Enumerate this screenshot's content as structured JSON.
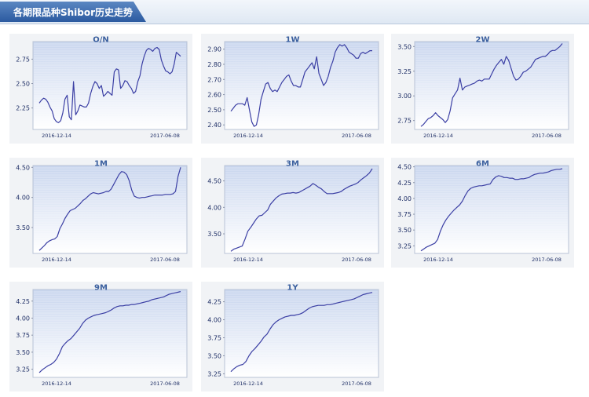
{
  "header": {
    "title": "各期限品种Shibor历史走势"
  },
  "chart_data": [
    {
      "type": "line",
      "title": "O/N",
      "ylim": [
        2.03,
        2.93
      ],
      "yticks": [
        2.25,
        2.5,
        2.75
      ],
      "ytick_labels": [
        "2.25",
        "2.50",
        "2.75"
      ],
      "x_labels": [
        "2016-12-14",
        "2017-06-08"
      ],
      "values": [
        2.3,
        2.33,
        2.35,
        2.34,
        2.31,
        2.26,
        2.22,
        2.14,
        2.11,
        2.1,
        2.12,
        2.2,
        2.34,
        2.38,
        2.16,
        2.13,
        2.52,
        2.18,
        2.22,
        2.28,
        2.27,
        2.26,
        2.26,
        2.3,
        2.4,
        2.47,
        2.52,
        2.5,
        2.45,
        2.48,
        2.37,
        2.39,
        2.42,
        2.4,
        2.38,
        2.62,
        2.65,
        2.64,
        2.45,
        2.48,
        2.53,
        2.52,
        2.48,
        2.45,
        2.4,
        2.42,
        2.52,
        2.58,
        2.7,
        2.78,
        2.84,
        2.86,
        2.85,
        2.83,
        2.86,
        2.87,
        2.85,
        2.74,
        2.68,
        2.63,
        2.62,
        2.6,
        2.62,
        2.7,
        2.82,
        2.8,
        2.78
      ]
    },
    {
      "type": "line",
      "title": "1W",
      "ylim": [
        2.37,
        2.95
      ],
      "yticks": [
        2.4,
        2.5,
        2.6,
        2.7,
        2.8,
        2.9
      ],
      "ytick_labels": [
        "2.40",
        "2.50",
        "2.60",
        "2.70",
        "2.80",
        "2.90"
      ],
      "x_labels": [
        "2016-12-14",
        "2017-06-08"
      ],
      "values": [
        2.49,
        2.51,
        2.53,
        2.54,
        2.54,
        2.54,
        2.53,
        2.58,
        2.5,
        2.42,
        2.39,
        2.4,
        2.47,
        2.57,
        2.62,
        2.67,
        2.68,
        2.64,
        2.62,
        2.63,
        2.62,
        2.65,
        2.68,
        2.7,
        2.72,
        2.73,
        2.69,
        2.66,
        2.66,
        2.65,
        2.65,
        2.7,
        2.75,
        2.77,
        2.79,
        2.81,
        2.77,
        2.85,
        2.74,
        2.7,
        2.66,
        2.68,
        2.72,
        2.78,
        2.82,
        2.88,
        2.91,
        2.93,
        2.92,
        2.93,
        2.91,
        2.88,
        2.87,
        2.86,
        2.84,
        2.84,
        2.87,
        2.88,
        2.87,
        2.88,
        2.89,
        2.89
      ]
    },
    {
      "type": "line",
      "title": "2W",
      "ylim": [
        2.66,
        3.55
      ],
      "yticks": [
        2.75,
        3.0,
        3.25,
        3.5
      ],
      "ytick_labels": [
        "2.75",
        "3.00",
        "3.25",
        "3.50"
      ],
      "x_labels": [
        "2016-12-14",
        "2017-06-08"
      ],
      "values": [
        2.69,
        2.71,
        2.74,
        2.77,
        2.78,
        2.8,
        2.83,
        2.8,
        2.78,
        2.76,
        2.73,
        2.76,
        2.85,
        2.98,
        3.02,
        3.06,
        3.18,
        3.06,
        3.09,
        3.1,
        3.11,
        3.12,
        3.13,
        3.15,
        3.16,
        3.15,
        3.17,
        3.17,
        3.17,
        3.22,
        3.27,
        3.31,
        3.34,
        3.37,
        3.32,
        3.4,
        3.36,
        3.28,
        3.2,
        3.16,
        3.17,
        3.2,
        3.24,
        3.25,
        3.27,
        3.29,
        3.33,
        3.37,
        3.38,
        3.39,
        3.4,
        3.4,
        3.42,
        3.45,
        3.46,
        3.46,
        3.48,
        3.5,
        3.53
      ]
    },
    {
      "type": "line",
      "title": "1M",
      "ylim": [
        3.07,
        4.53
      ],
      "yticks": [
        3.5,
        4.0,
        4.5
      ],
      "ytick_labels": [
        "3.50",
        "4.00",
        "4.50"
      ],
      "x_labels": [
        "2016-12-14",
        "2017-06-08"
      ],
      "values": [
        3.12,
        3.16,
        3.2,
        3.25,
        3.28,
        3.3,
        3.31,
        3.35,
        3.48,
        3.56,
        3.65,
        3.72,
        3.78,
        3.8,
        3.82,
        3.86,
        3.9,
        3.95,
        3.98,
        4.02,
        4.06,
        4.08,
        4.07,
        4.06,
        4.07,
        4.08,
        4.1,
        4.1,
        4.14,
        4.22,
        4.3,
        4.38,
        4.43,
        4.42,
        4.38,
        4.28,
        4.12,
        4.02,
        4.0,
        3.99,
        4.0,
        4.0,
        4.01,
        4.02,
        4.03,
        4.04,
        4.04,
        4.04,
        4.04,
        4.05,
        4.05,
        4.05,
        4.06,
        4.1,
        4.35,
        4.5
      ]
    },
    {
      "type": "line",
      "title": "3M",
      "ylim": [
        3.13,
        4.79
      ],
      "yticks": [
        3.5,
        4.0,
        4.5
      ],
      "ytick_labels": [
        "3.50",
        "4.00",
        "4.50"
      ],
      "x_labels": [
        "2016-12-14",
        "2017-06-08"
      ],
      "values": [
        3.17,
        3.21,
        3.23,
        3.25,
        3.27,
        3.4,
        3.55,
        3.62,
        3.7,
        3.78,
        3.84,
        3.85,
        3.9,
        3.95,
        4.06,
        4.12,
        4.18,
        4.22,
        4.25,
        4.26,
        4.27,
        4.27,
        4.28,
        4.27,
        4.28,
        4.31,
        4.34,
        4.37,
        4.4,
        4.45,
        4.42,
        4.38,
        4.35,
        4.3,
        4.26,
        4.26,
        4.26,
        4.27,
        4.28,
        4.3,
        4.34,
        4.37,
        4.4,
        4.42,
        4.44,
        4.47,
        4.52,
        4.56,
        4.6,
        4.65,
        4.73
      ]
    },
    {
      "type": "line",
      "title": "6M",
      "ylim": [
        3.13,
        4.52
      ],
      "yticks": [
        3.25,
        3.5,
        3.75,
        4.0,
        4.25,
        4.5
      ],
      "ytick_labels": [
        "3.25",
        "3.50",
        "3.75",
        "4.00",
        "4.25",
        "4.50"
      ],
      "x_labels": [
        "2016-12-14",
        "2017-06-08"
      ],
      "values": [
        3.17,
        3.2,
        3.23,
        3.25,
        3.27,
        3.29,
        3.35,
        3.48,
        3.58,
        3.66,
        3.72,
        3.77,
        3.82,
        3.86,
        3.9,
        3.96,
        4.05,
        4.12,
        4.16,
        4.18,
        4.19,
        4.2,
        4.2,
        4.21,
        4.22,
        4.23,
        4.3,
        4.34,
        4.36,
        4.35,
        4.33,
        4.33,
        4.32,
        4.32,
        4.3,
        4.3,
        4.31,
        4.31,
        4.32,
        4.33,
        4.36,
        4.38,
        4.39,
        4.4,
        4.4,
        4.41,
        4.42,
        4.44,
        4.45,
        4.46,
        4.46,
        4.47
      ]
    },
    {
      "type": "line",
      "title": "9M",
      "ylim": [
        3.13,
        4.42
      ],
      "yticks": [
        3.25,
        3.5,
        3.75,
        4.0,
        4.25
      ],
      "ytick_labels": [
        "3.25",
        "3.50",
        "3.75",
        "4.00",
        "4.25"
      ],
      "x_labels": [
        "2016-12-14",
        "2017-06-08"
      ],
      "values": [
        3.2,
        3.24,
        3.27,
        3.3,
        3.32,
        3.35,
        3.4,
        3.48,
        3.58,
        3.63,
        3.67,
        3.7,
        3.75,
        3.8,
        3.85,
        3.92,
        3.97,
        4.0,
        4.02,
        4.04,
        4.05,
        4.06,
        4.07,
        4.08,
        4.1,
        4.12,
        4.15,
        4.17,
        4.18,
        4.18,
        4.19,
        4.19,
        4.2,
        4.2,
        4.21,
        4.22,
        4.23,
        4.24,
        4.25,
        4.27,
        4.28,
        4.29,
        4.3,
        4.31,
        4.33,
        4.35,
        4.36,
        4.37,
        4.38,
        4.39
      ]
    },
    {
      "type": "line",
      "title": "1Y",
      "ylim": [
        3.2,
        4.42
      ],
      "yticks": [
        3.25,
        3.5,
        3.75,
        4.0,
        4.25
      ],
      "ytick_labels": [
        "3.25",
        "3.50",
        "3.75",
        "4.00",
        "4.25"
      ],
      "x_labels": [
        "2016-12-14",
        "2017-06-08"
      ],
      "values": [
        3.28,
        3.32,
        3.35,
        3.37,
        3.38,
        3.42,
        3.5,
        3.56,
        3.6,
        3.65,
        3.7,
        3.76,
        3.8,
        3.87,
        3.93,
        3.97,
        4.0,
        4.02,
        4.04,
        4.05,
        4.06,
        4.06,
        4.07,
        4.08,
        4.1,
        4.13,
        4.16,
        4.18,
        4.19,
        4.2,
        4.2,
        4.2,
        4.21,
        4.21,
        4.22,
        4.23,
        4.24,
        4.25,
        4.26,
        4.27,
        4.28,
        4.29,
        4.31,
        4.33,
        4.35,
        4.36,
        4.37,
        4.38
      ]
    }
  ]
}
